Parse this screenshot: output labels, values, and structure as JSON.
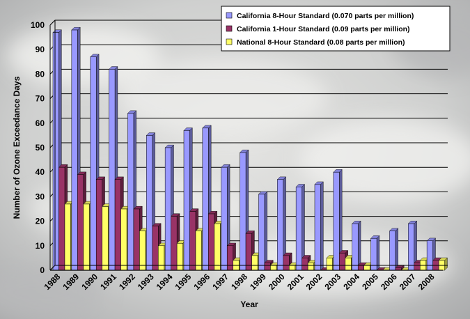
{
  "chart_data": {
    "type": "bar",
    "xlabel": "Year",
    "ylabel": "Number of Ozone Exceedance  Days",
    "ylim": [
      0,
      100
    ],
    "yticks": [
      0,
      10,
      20,
      30,
      40,
      50,
      60,
      70,
      80,
      90,
      100
    ],
    "grid": true,
    "legend_position": "top-right",
    "categories": [
      "1988",
      "1989",
      "1990",
      "1991",
      "1992",
      "1993",
      "1994",
      "1995",
      "1996",
      "1997",
      "1998",
      "1999",
      "2000",
      "2001",
      "2002",
      "2003",
      "2004",
      "2005",
      "2006",
      "2007",
      "2008"
    ],
    "series": [
      {
        "name": "California 8-Hour  Standard (0.070 parts per million)",
        "color": "#9999FF",
        "values": [
          97,
          98,
          87,
          82,
          64,
          55,
          50,
          57,
          58,
          42,
          48,
          31,
          37,
          34,
          35,
          40,
          19,
          13,
          16,
          19,
          12
        ]
      },
      {
        "name": "California 1-Hour  Standard (0.09 parts per million)",
        "color": "#993366",
        "values": [
          42,
          39,
          37,
          37,
          25,
          18,
          22,
          24,
          23,
          10,
          15,
          3,
          6,
          5,
          0,
          7,
          2,
          0,
          1,
          3,
          4
        ]
      },
      {
        "name": "National 8-Hour Standard (0.08 parts per million)",
        "color": "#FFFF66",
        "values": [
          27,
          27,
          26,
          25,
          16,
          10,
          11,
          16,
          19,
          4,
          6,
          2,
          2,
          3,
          5,
          5,
          2,
          0,
          0,
          4,
          4
        ]
      }
    ]
  }
}
